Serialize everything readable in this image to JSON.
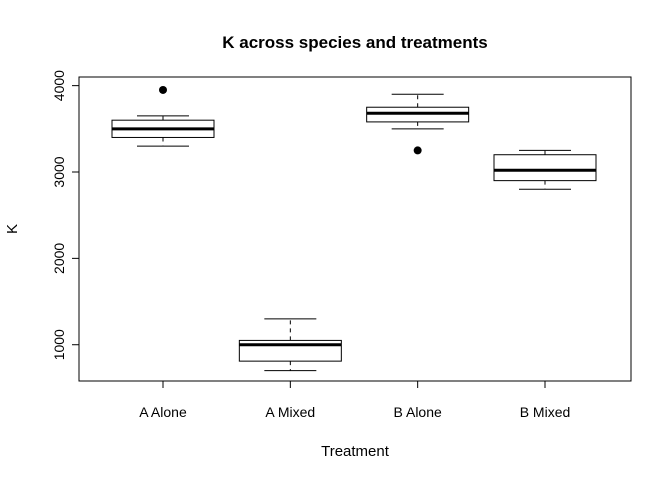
{
  "chart_data": {
    "type": "boxplot",
    "title": "K across species and treatments",
    "xlabel": "Treatment",
    "ylabel": "K",
    "categories": [
      "A Alone",
      "A Mixed",
      "B Alone",
      "B Mixed"
    ],
    "y_ticks": [
      "1000",
      "2000",
      "3000",
      "4000"
    ],
    "ylim": [
      580,
      4100
    ],
    "grid": false,
    "boxes": [
      {
        "category": "A Alone",
        "whisker_low": 3300,
        "q1": 3400,
        "median": 3500,
        "q3": 3600,
        "whisker_high": 3650,
        "outliers": [
          3950
        ]
      },
      {
        "category": "A Mixed",
        "whisker_low": 700,
        "q1": 810,
        "median": 1000,
        "q3": 1050,
        "whisker_high": 1300,
        "outliers": []
      },
      {
        "category": "B Alone",
        "whisker_low": 3500,
        "q1": 3580,
        "median": 3680,
        "q3": 3750,
        "whisker_high": 3900,
        "outliers": [
          3250
        ]
      },
      {
        "category": "B Mixed",
        "whisker_low": 2800,
        "q1": 2900,
        "median": 3020,
        "q3": 3200,
        "whisker_high": 3250,
        "outliers": []
      }
    ]
  }
}
